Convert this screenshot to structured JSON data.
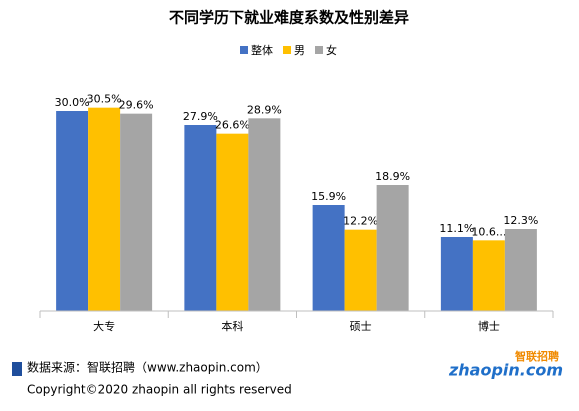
{
  "chart_data": {
    "type": "bar",
    "title": "不同学历下就业难度系数及性别差异",
    "categories": [
      "大专",
      "本科",
      "硕士",
      "博士"
    ],
    "series": [
      {
        "name": "整体",
        "color": "#4472c4",
        "values": [
          30.0,
          27.9,
          15.9,
          11.1
        ],
        "value_labels": [
          "30.0%",
          "27.9%",
          "15.9%",
          "11.1%"
        ]
      },
      {
        "name": "男",
        "color": "#ffc000",
        "values": [
          30.5,
          26.6,
          12.2,
          10.6
        ],
        "value_labels": [
          "30.5%",
          "26.6%",
          "12.2%",
          "10.6..."
        ]
      },
      {
        "name": "女",
        "color": "#a5a5a5",
        "values": [
          29.6,
          28.9,
          18.9,
          12.3
        ],
        "value_labels": [
          "29.6%",
          "28.9%",
          "18.9%",
          "12.3%"
        ]
      }
    ],
    "legend": "top"
  },
  "footer": {
    "source": "数据来源：智联招聘（www.zhaopin.com）",
    "copyright": "Copyright©2020 zhaopin all rights reserved",
    "logo_cn": "智联招聘",
    "logo_en": "zhaopin.com"
  }
}
